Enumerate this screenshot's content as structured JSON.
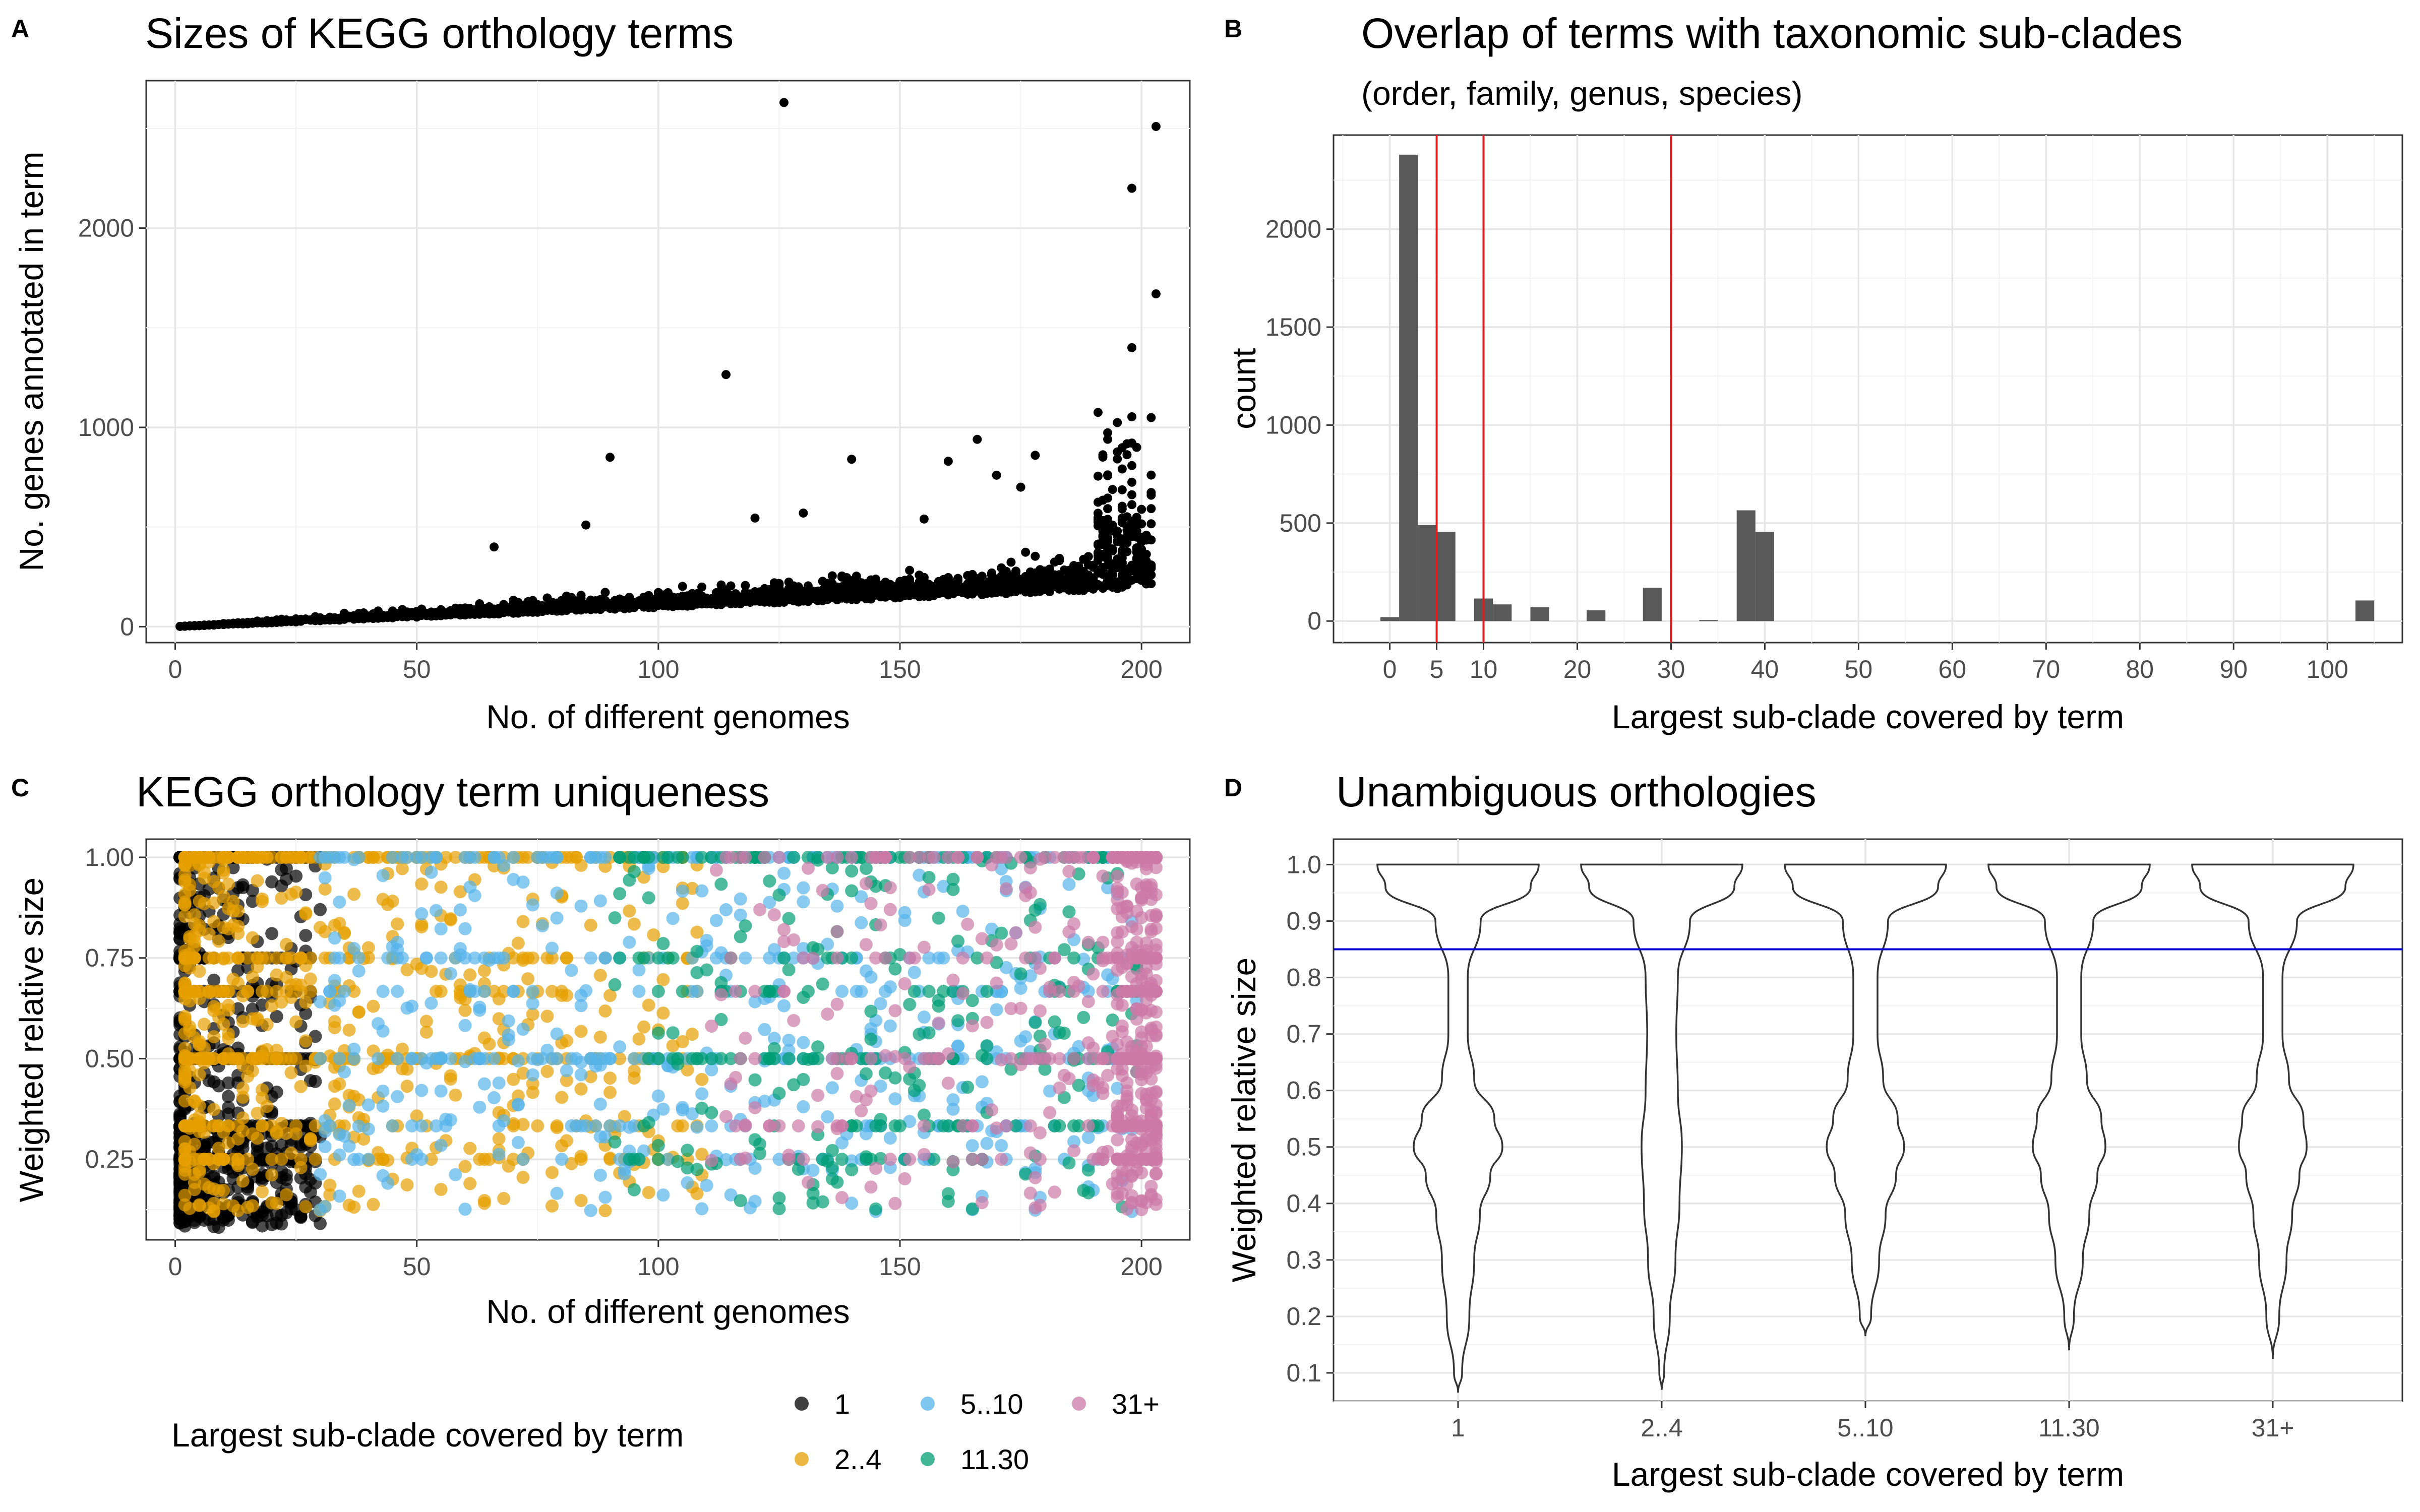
{
  "panels": {
    "A": {
      "letter": "A",
      "title": "Sizes of KEGG orthology terms"
    },
    "B": {
      "letter": "B",
      "title": "Overlap of terms with taxonomic sub-clades",
      "subtitle": "(order, family, genus, species)"
    },
    "C": {
      "letter": "C",
      "title": "KEGG orthology term uniqueness"
    },
    "D": {
      "letter": "D",
      "title": "Unambiguous orthologies"
    }
  },
  "legend": {
    "title": "Largest sub-clade covered by term",
    "items": [
      {
        "label": "1",
        "color": "#000000"
      },
      {
        "label": "2..4",
        "color": "#E69F00"
      },
      {
        "label": "5..10",
        "color": "#56B4E9"
      },
      {
        "label": "11.30",
        "color": "#009E73"
      },
      {
        "label": "31+",
        "color": "#CC79A7"
      }
    ]
  },
  "chart_data": [
    {
      "id": "A",
      "type": "scatter",
      "title": "Sizes of KEGG orthology terms",
      "xlabel": "No. of different genomes",
      "ylabel": "No. genes annotated in term",
      "xlim": [
        -6,
        210
      ],
      "ylim": [
        -80,
        2740
      ],
      "xticks": [
        0,
        50,
        100,
        150,
        200
      ],
      "yticks": [
        0,
        1000,
        2000
      ],
      "grid": true,
      "point_color": "#000000",
      "highlighted_points": [
        [
          126,
          2630
        ],
        [
          203,
          2510
        ],
        [
          198,
          2200
        ],
        [
          203,
          1670
        ],
        [
          114,
          1265
        ],
        [
          198,
          1400
        ],
        [
          166,
          940
        ],
        [
          90,
          850
        ],
        [
          66,
          400
        ],
        [
          85,
          510
        ],
        [
          140,
          840
        ],
        [
          160,
          830
        ],
        [
          170,
          760
        ],
        [
          178,
          860
        ],
        [
          155,
          540
        ],
        [
          175,
          700
        ],
        [
          120,
          545
        ],
        [
          130,
          570
        ]
      ]
    },
    {
      "id": "B",
      "type": "bar",
      "title": "Overlap of terms with taxonomic sub-clades",
      "subtitle": "(order, family, genus, species)",
      "xlabel": "Largest sub-clade covered by term",
      "ylabel": "count",
      "xlim": [
        -6,
        108
      ],
      "ylim": [
        -110,
        2480
      ],
      "xticks": [
        0,
        10,
        20,
        30,
        40,
        50,
        60,
        70,
        80,
        90,
        100
      ],
      "extra_xticks": [
        5
      ],
      "yticks": [
        0,
        500,
        1000,
        1500,
        2000
      ],
      "bin_width": 2,
      "bins": [
        {
          "x": 0,
          "count": 20
        },
        {
          "x": 2,
          "count": 2380
        },
        {
          "x": 4,
          "count": 490
        },
        {
          "x": 6,
          "count": 455
        },
        {
          "x": 10,
          "count": 115
        },
        {
          "x": 12,
          "count": 85
        },
        {
          "x": 16,
          "count": 70
        },
        {
          "x": 22,
          "count": 55
        },
        {
          "x": 28,
          "count": 170
        },
        {
          "x": 34,
          "count": 5
        },
        {
          "x": 38,
          "count": 565
        },
        {
          "x": 40,
          "count": 455
        },
        {
          "x": 104,
          "count": 105
        }
      ],
      "bar_color": "#595959",
      "reference_lines": [
        5,
        10,
        30
      ],
      "reference_color": "#e31a1c",
      "grid": true
    },
    {
      "id": "C",
      "type": "scatter",
      "title": "KEGG orthology term uniqueness",
      "xlabel": "No. of different genomes",
      "ylabel": "Weighted relative size",
      "xlim": [
        -6,
        210
      ],
      "ylim": [
        0.05,
        1.045
      ],
      "xticks": [
        0,
        50,
        100,
        150,
        200
      ],
      "yticks": [
        0.25,
        0.5,
        0.75,
        1.0
      ],
      "ytick_labels": [
        "0.25",
        "0.50",
        "0.75",
        "1.00"
      ],
      "grid": true,
      "series": [
        {
          "name": "1",
          "color": "#000000",
          "x_range": [
            1,
            30
          ],
          "density": "left-heavy"
        },
        {
          "name": "2..4",
          "color": "#E69F00",
          "x_range": [
            2,
            110
          ],
          "density": "left-heavy"
        },
        {
          "name": "5..10",
          "color": "#56B4E9",
          "x_range": [
            30,
            200
          ],
          "density": "mid"
        },
        {
          "name": "11.30",
          "color": "#009E73",
          "x_range": [
            90,
            200
          ],
          "density": "mid"
        },
        {
          "name": "31+",
          "color": "#CC79A7",
          "x_range": [
            110,
            203
          ],
          "density": "right-heavy"
        }
      ]
    },
    {
      "id": "D",
      "type": "violin",
      "title": "Unambiguous orthologies",
      "xlabel": "Largest sub-clade covered by term",
      "ylabel": "Weighted relative size",
      "categories": [
        "1",
        "2..4",
        "5..10",
        "11.30",
        "31+"
      ],
      "ylim": [
        0.05,
        1.045
      ],
      "yticks": [
        0.1,
        0.2,
        0.3,
        0.4,
        0.5,
        0.6,
        0.7,
        0.8,
        0.9,
        1.0
      ],
      "ytick_labels": [
        "0.1",
        "0.2",
        "0.3",
        "0.4",
        "0.5",
        "0.6",
        "0.7",
        "0.8",
        "0.9",
        "1.0"
      ],
      "reference_line": 0.85,
      "reference_color": "#0000cc",
      "minimums": [
        0.065,
        0.07,
        0.165,
        0.14,
        0.125
      ],
      "grid": true
    }
  ]
}
